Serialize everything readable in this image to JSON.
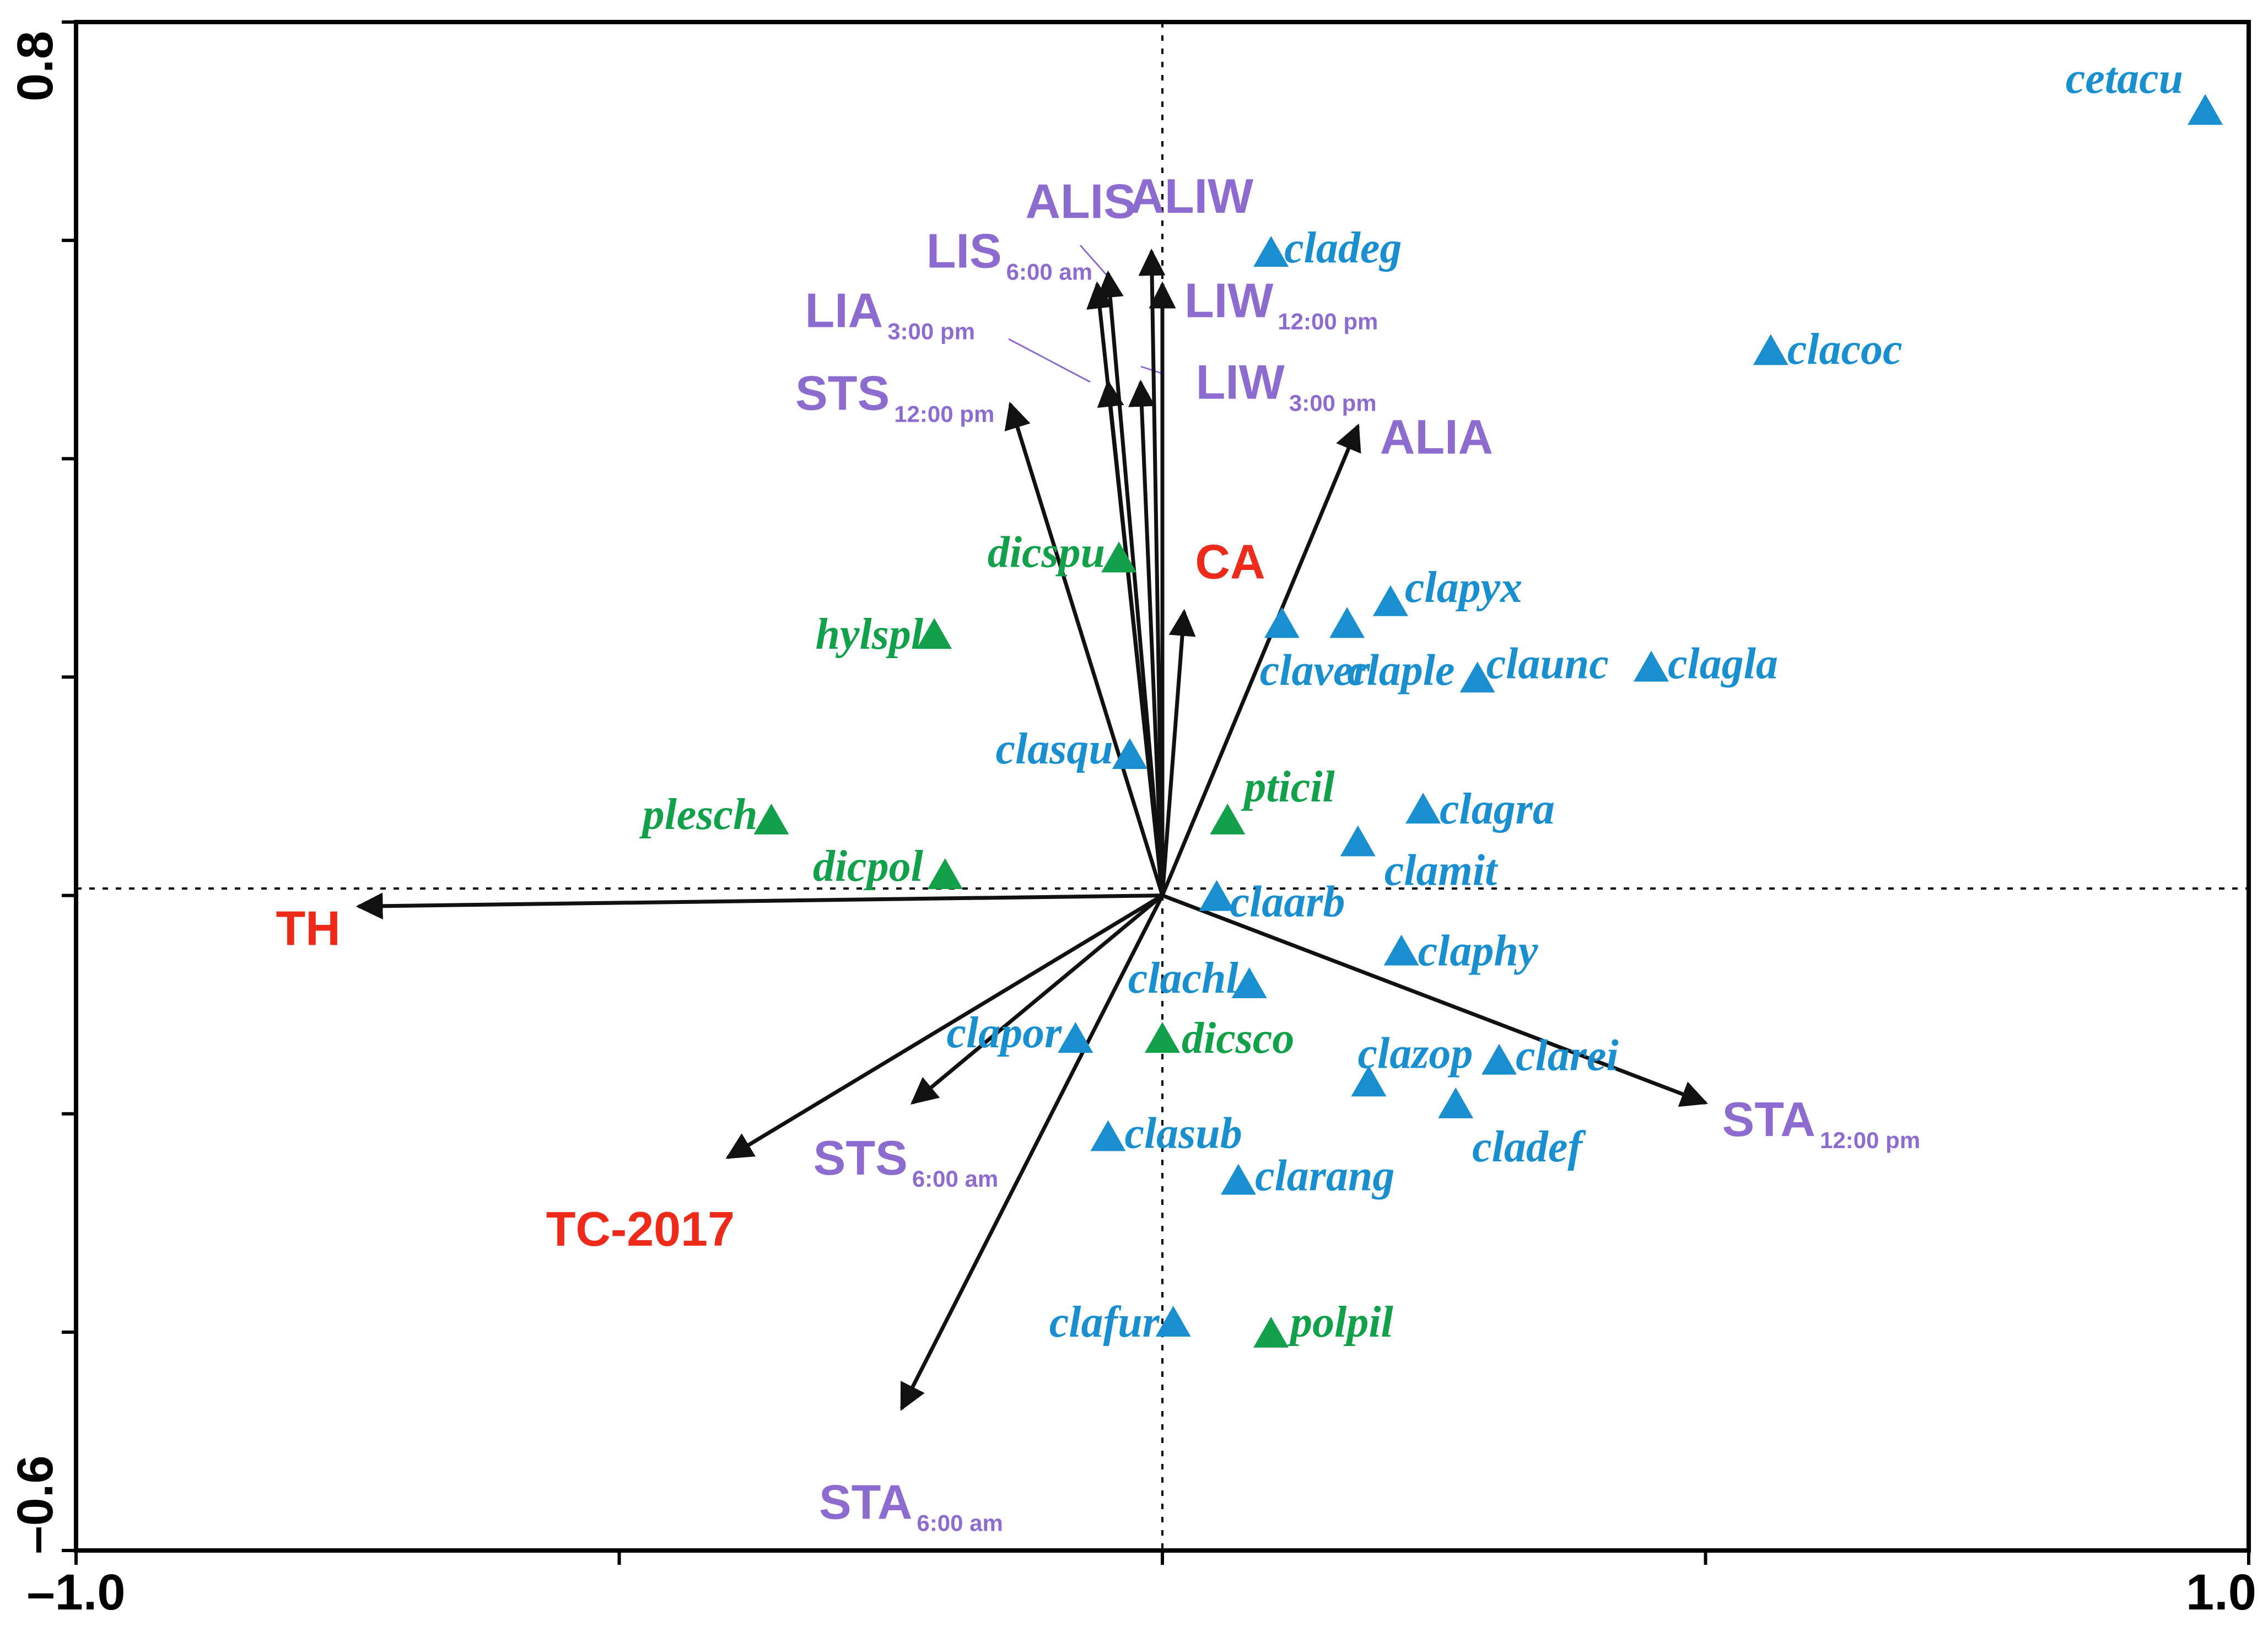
{
  "chart_data": {
    "type": "scatter",
    "subtype": "ordination biplot",
    "xlim": [
      -1.0,
      1.0
    ],
    "ylim": [
      -0.6,
      0.8
    ],
    "x_tick_labels": [
      "–1.0",
      "1.0"
    ],
    "y_tick_labels": [
      "0.8",
      "–0.6"
    ],
    "x_ticks": [
      -1.0,
      -0.5,
      0.0,
      0.5,
      1.0
    ],
    "y_ticks": [
      -0.6,
      -0.4,
      -0.2,
      0.0,
      0.2,
      0.4,
      0.6,
      0.8
    ],
    "colors": {
      "blue_species": "#1a8fcf",
      "green_species": "#12a04a",
      "purple_variable": "#8e6bcf",
      "red_variable": "#ee2b1b",
      "arrow": "#111111"
    },
    "species": [
      {
        "name": "cetacu",
        "group": "blue",
        "x": 0.96,
        "y": 0.72
      },
      {
        "name": "cladeg",
        "group": "blue",
        "x": 0.1,
        "y": 0.59
      },
      {
        "name": "clacoc",
        "group": "blue",
        "x": 0.56,
        "y": 0.5
      },
      {
        "name": "clapyx",
        "group": "blue",
        "x": 0.21,
        "y": 0.27
      },
      {
        "name": "claver",
        "group": "blue",
        "x": 0.11,
        "y": 0.25
      },
      {
        "name": "claple",
        "group": "blue",
        "x": 0.17,
        "y": 0.25
      },
      {
        "name": "claunc",
        "group": "blue",
        "x": 0.29,
        "y": 0.2
      },
      {
        "name": "clagla",
        "group": "blue",
        "x": 0.45,
        "y": 0.21
      },
      {
        "name": "clasqu",
        "group": "blue",
        "x": -0.03,
        "y": 0.13
      },
      {
        "name": "clagra",
        "group": "blue",
        "x": 0.24,
        "y": 0.08
      },
      {
        "name": "clamit",
        "group": "blue",
        "x": 0.18,
        "y": 0.05
      },
      {
        "name": "claarb",
        "group": "blue",
        "x": 0.05,
        "y": 0.0
      },
      {
        "name": "claphy",
        "group": "blue",
        "x": 0.22,
        "y": -0.05
      },
      {
        "name": "clachl",
        "group": "blue",
        "x": 0.08,
        "y": -0.08
      },
      {
        "name": "clapor",
        "group": "blue",
        "x": -0.08,
        "y": -0.13
      },
      {
        "name": "clazop",
        "group": "blue",
        "x": 0.19,
        "y": -0.17
      },
      {
        "name": "clarei",
        "group": "blue",
        "x": 0.31,
        "y": -0.15
      },
      {
        "name": "cladef",
        "group": "blue",
        "x": 0.27,
        "y": -0.19
      },
      {
        "name": "clasub",
        "group": "blue",
        "x": -0.05,
        "y": -0.22
      },
      {
        "name": "clarang",
        "group": "blue",
        "x": 0.07,
        "y": -0.26
      },
      {
        "name": "clafur",
        "group": "blue",
        "x": 0.01,
        "y": -0.39
      },
      {
        "name": "dicspu",
        "group": "green",
        "x": -0.04,
        "y": 0.31
      },
      {
        "name": "hylspl",
        "group": "green",
        "x": -0.21,
        "y": 0.24
      },
      {
        "name": "plesch",
        "group": "green",
        "x": -0.36,
        "y": 0.07
      },
      {
        "name": "dicpol",
        "group": "green",
        "x": -0.2,
        "y": 0.02
      },
      {
        "name": "pticil",
        "group": "green",
        "x": 0.06,
        "y": 0.07
      },
      {
        "name": "dicsco",
        "group": "green",
        "x": 0.0,
        "y": -0.13
      },
      {
        "name": "polpil",
        "group": "green",
        "x": 0.1,
        "y": -0.4
      }
    ],
    "variables": [
      {
        "name": "ALIS",
        "sub": "",
        "color": "purple",
        "x": -0.05,
        "y": 0.57
      },
      {
        "name": "ALIW",
        "sub": "",
        "color": "purple",
        "x": -0.01,
        "y": 0.59
      },
      {
        "name": "LIS",
        "sub": "6:00 am",
        "color": "purple",
        "x": -0.06,
        "y": 0.56
      },
      {
        "name": "LIA",
        "sub": "3:00 pm",
        "color": "purple",
        "x": -0.05,
        "y": 0.47
      },
      {
        "name": "LIW",
        "sub": "12:00 pm",
        "color": "purple",
        "x": 0.0,
        "y": 0.56
      },
      {
        "name": "LIW",
        "sub": "3:00 pm",
        "color": "purple",
        "x": -0.02,
        "y": 0.47
      },
      {
        "name": "STS",
        "sub": "12:00 pm",
        "color": "purple",
        "x": -0.14,
        "y": 0.45
      },
      {
        "name": "ALIA",
        "sub": "",
        "color": "purple",
        "x": 0.18,
        "y": 0.43
      },
      {
        "name": "STA",
        "sub": "12:00 pm",
        "color": "purple",
        "x": 0.5,
        "y": -0.19
      },
      {
        "name": "STS",
        "sub": "6:00 am",
        "color": "purple",
        "x": -0.23,
        "y": -0.19
      },
      {
        "name": "STA",
        "sub": "6:00 am",
        "color": "purple",
        "x": -0.24,
        "y": -0.47
      },
      {
        "name": "CA",
        "sub": "",
        "color": "red",
        "x": 0.02,
        "y": 0.26
      },
      {
        "name": "TH",
        "sub": "",
        "color": "red",
        "x": -0.74,
        "y": -0.01
      },
      {
        "name": "TC-2017",
        "sub": "",
        "color": "red",
        "x": -0.4,
        "y": -0.24
      }
    ]
  }
}
